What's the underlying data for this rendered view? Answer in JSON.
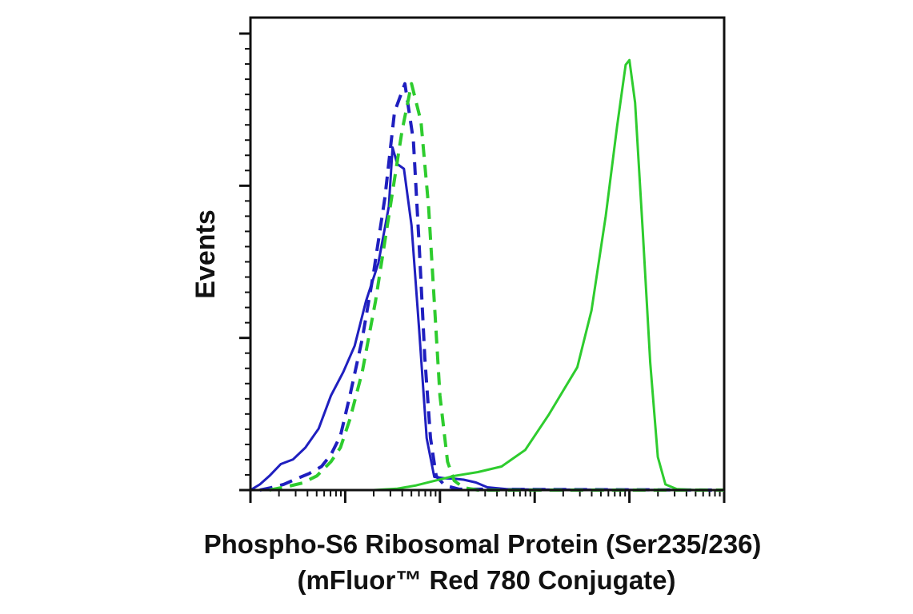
{
  "chart_data": {
    "type": "line",
    "title": "",
    "xlabel_lines": [
      "Phospho-S6 Ribosomal Protein (Ser235/236)",
      "(mFluor™ Red 780 Conjugate)"
    ],
    "ylabel": "Events",
    "x_scale": "log",
    "x_range_decades": [
      0,
      5
    ],
    "y_scale": "linear",
    "y_range": [
      0,
      1
    ],
    "major_tick_labels_shown": false,
    "grid": false,
    "legend": "none",
    "series": [
      {
        "style": "solid",
        "color": "#1f1fbf",
        "points": [
          [
            0.0,
            0.0
          ],
          [
            0.1,
            0.012
          ],
          [
            0.2,
            0.03
          ],
          [
            0.32,
            0.055
          ],
          [
            0.45,
            0.065
          ],
          [
            0.58,
            0.09
          ],
          [
            0.72,
            0.13
          ],
          [
            0.85,
            0.2
          ],
          [
            0.98,
            0.25
          ],
          [
            1.1,
            0.305
          ],
          [
            1.22,
            0.4
          ],
          [
            1.35,
            0.48
          ],
          [
            1.46,
            0.6
          ],
          [
            1.5,
            0.725
          ],
          [
            1.55,
            0.69
          ],
          [
            1.62,
            0.68
          ],
          [
            1.7,
            0.56
          ],
          [
            1.78,
            0.34
          ],
          [
            1.86,
            0.11
          ],
          [
            1.94,
            0.028
          ],
          [
            2.05,
            0.025
          ],
          [
            2.15,
            0.024
          ],
          [
            2.25,
            0.022
          ],
          [
            2.38,
            0.016
          ],
          [
            2.5,
            0.006
          ],
          [
            2.7,
            0.002
          ],
          [
            3.0,
            0.001
          ],
          [
            5.0,
            0.0
          ]
        ]
      },
      {
        "style": "dashed",
        "color": "#1f1fbf",
        "points": [
          [
            0.1,
            0.0
          ],
          [
            0.22,
            0.005
          ],
          [
            0.35,
            0.012
          ],
          [
            0.5,
            0.025
          ],
          [
            0.62,
            0.035
          ],
          [
            0.75,
            0.05
          ],
          [
            0.85,
            0.075
          ],
          [
            0.95,
            0.115
          ],
          [
            1.05,
            0.2
          ],
          [
            1.18,
            0.32
          ],
          [
            1.3,
            0.46
          ],
          [
            1.42,
            0.62
          ],
          [
            1.52,
            0.8
          ],
          [
            1.63,
            0.86
          ],
          [
            1.72,
            0.74
          ],
          [
            1.78,
            0.52
          ],
          [
            1.84,
            0.28
          ],
          [
            1.9,
            0.11
          ],
          [
            1.96,
            0.03
          ],
          [
            2.05,
            0.01
          ],
          [
            2.2,
            0.002
          ],
          [
            5.0,
            0.0
          ]
        ]
      },
      {
        "style": "dashed",
        "color": "#2ecc2e",
        "points": [
          [
            0.2,
            0.0
          ],
          [
            0.4,
            0.008
          ],
          [
            0.55,
            0.015
          ],
          [
            0.7,
            0.03
          ],
          [
            0.85,
            0.06
          ],
          [
            0.95,
            0.09
          ],
          [
            1.05,
            0.15
          ],
          [
            1.18,
            0.25
          ],
          [
            1.32,
            0.4
          ],
          [
            1.46,
            0.58
          ],
          [
            1.6,
            0.76
          ],
          [
            1.7,
            0.86
          ],
          [
            1.8,
            0.78
          ],
          [
            1.88,
            0.6
          ],
          [
            1.94,
            0.4
          ],
          [
            2.0,
            0.2
          ],
          [
            2.08,
            0.06
          ],
          [
            2.15,
            0.02
          ],
          [
            2.25,
            0.005
          ],
          [
            2.4,
            0.0
          ],
          [
            5.0,
            0.0
          ]
        ]
      },
      {
        "style": "solid",
        "color": "#2ecc2e",
        "points": [
          [
            0.0,
            0.0
          ],
          [
            1.3,
            0.0
          ],
          [
            1.55,
            0.003
          ],
          [
            1.75,
            0.01
          ],
          [
            1.95,
            0.02
          ],
          [
            2.15,
            0.03
          ],
          [
            2.4,
            0.038
          ],
          [
            2.65,
            0.05
          ],
          [
            2.9,
            0.085
          ],
          [
            3.15,
            0.16
          ],
          [
            3.3,
            0.21
          ],
          [
            3.45,
            0.26
          ],
          [
            3.6,
            0.38
          ],
          [
            3.75,
            0.58
          ],
          [
            3.87,
            0.77
          ],
          [
            3.96,
            0.9
          ],
          [
            4.0,
            0.91
          ],
          [
            4.06,
            0.82
          ],
          [
            4.14,
            0.55
          ],
          [
            4.22,
            0.27
          ],
          [
            4.3,
            0.07
          ],
          [
            4.38,
            0.012
          ],
          [
            4.5,
            0.002
          ],
          [
            4.7,
            0.0
          ],
          [
            5.0,
            0.0
          ]
        ]
      }
    ]
  }
}
